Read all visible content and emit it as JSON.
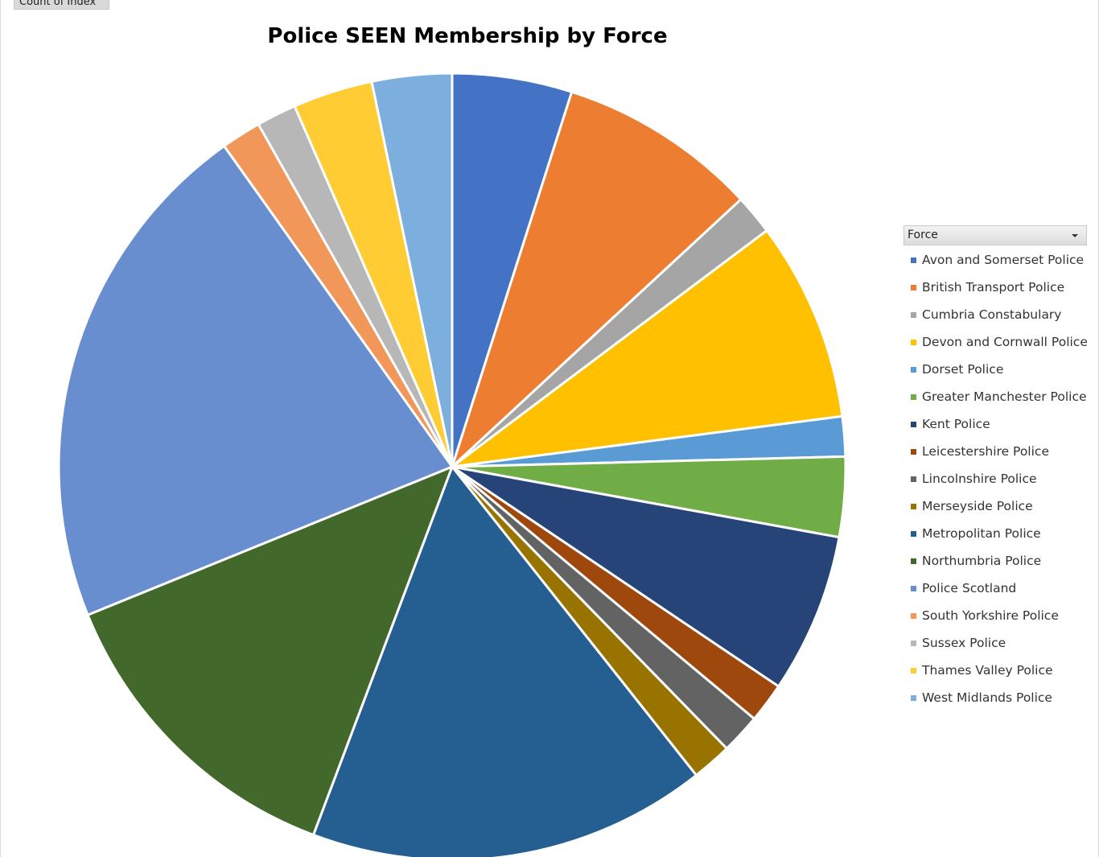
{
  "pivot": {
    "value_field_label": "Count of Index"
  },
  "chart_data": {
    "type": "pie",
    "title": "Police SEEN Membership by Force",
    "legend_title": "Force",
    "legend_position": "right",
    "categories": [
      "Avon and Somerset Police",
      "British Transport Police",
      "Cumbria Constabulary",
      "Devon and Cornwall Police",
      "Dorset Police",
      "Greater Manchester Police",
      "Kent Police",
      "Leicestershire Police",
      "Lincolnshire Police",
      "Merseyside Police",
      "Metropolitan Police",
      "Northumbria Police",
      "Police Scotland",
      "South Yorkshire Police",
      "Sussex Police",
      "Thames Valley Police",
      "West Midlands Police"
    ],
    "values": [
      3,
      5,
      1,
      5,
      1,
      2,
      4,
      1,
      1,
      1,
      10,
      8,
      13,
      1,
      1,
      2,
      2
    ],
    "colors": [
      "#4472c4",
      "#ed7d31",
      "#a5a5a5",
      "#ffc000",
      "#5b9bd5",
      "#70ad47",
      "#264478",
      "#9e480e",
      "#636363",
      "#997300",
      "#255e91",
      "#43682b",
      "#698ed0",
      "#f1975a",
      "#b7b7b7",
      "#ffcd33",
      "#7cafdd"
    ]
  }
}
